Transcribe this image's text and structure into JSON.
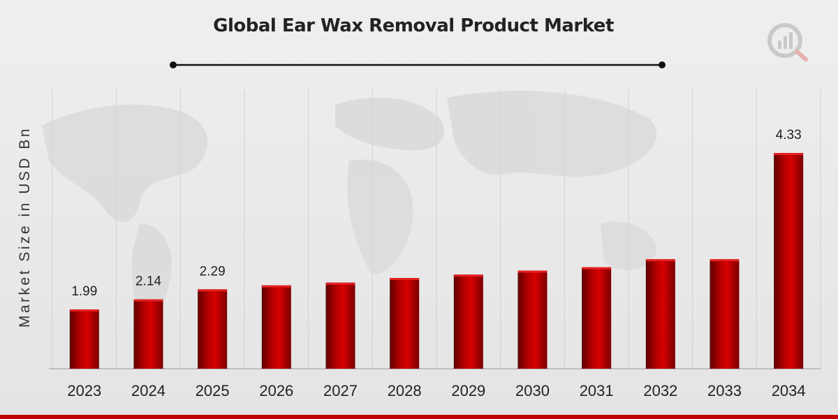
{
  "chart_data": {
    "type": "bar",
    "title": "Global Ear Wax Removal Product Market",
    "ylabel": "Market Size in USD Bn",
    "xlabel": "",
    "categories": [
      "2023",
      "2024",
      "2025",
      "2026",
      "2027",
      "2028",
      "2029",
      "2030",
      "2031",
      "2032",
      "2033",
      "2034"
    ],
    "values": [
      1.99,
      2.14,
      2.29,
      2.35,
      2.39,
      2.46,
      2.51,
      2.57,
      2.62,
      2.74,
      2.74,
      4.33
    ],
    "data_labels": [
      {
        "category": "2023",
        "text": "1.99"
      },
      {
        "category": "2024",
        "text": "2.14"
      },
      {
        "category": "2025",
        "text": "2.29"
      },
      {
        "category": "2034",
        "text": "4.33"
      }
    ],
    "bar_color": "#c00000",
    "grid": "vertical",
    "legend": "none"
  }
}
